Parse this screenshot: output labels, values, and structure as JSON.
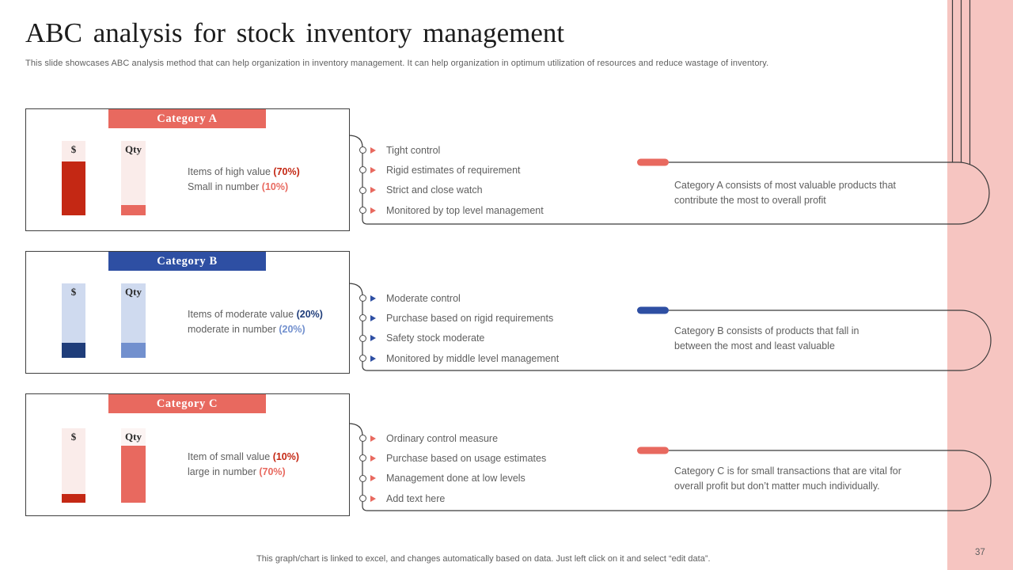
{
  "slide": {
    "title": "ABC analysis for stock inventory management",
    "subtitle": "This slide showcases ABC analysis method that can help organization in inventory management. It can help organization in optimum utilization of resources and reduce wastage of inventory.",
    "footer": "This graph/chart is linked to excel, and changes automatically based on data. Just left click on it and select “edit data”.",
    "page_number": "37"
  },
  "colors": {
    "salmon": "#E8695F",
    "dark_red": "#C42814",
    "light_pink_track": "#FAECEA",
    "navy_header": "#2E4FA3",
    "dark_navy": "#1F3D7A",
    "medium_blue": "#7290CE",
    "light_blue_track": "#CFDAEF",
    "pink_stripe": "#F6C5C1",
    "body_text_gray": "#5f5f5f",
    "outline_dark": "#3B3B3B"
  },
  "chart_data": {
    "type": "bar",
    "note": "Each category shows two vertical bars: $ (value share) and Qty (quantity share)",
    "categories": [
      "Category A",
      "Category B",
      "Category C"
    ],
    "series": [
      {
        "name": "$",
        "values_pct": [
          70,
          20,
          10
        ]
      },
      {
        "name": "Qty",
        "values_pct": [
          10,
          20,
          70
        ]
      }
    ]
  },
  "categories": [
    {
      "header": "Category A",
      "marker_color": "#E8695F",
      "bars": [
        {
          "label": "$",
          "stated_pct": "70%",
          "fill_pct": 72
        },
        {
          "label": "Qty",
          "stated_pct": "10%",
          "fill_pct": 14
        }
      ],
      "desc": [
        {
          "text": "Items of high value ",
          "pct": "(70%)"
        },
        {
          "text": "Small in number ",
          "pct": "(10%)"
        }
      ],
      "bullets": [
        "Tight control",
        "Rigid estimates of requirement",
        "Strict and close watch",
        "Monitored by top level management"
      ],
      "callout_lines": [
        "Category A consists of most valuable products that",
        "contribute the most to overall profit"
      ]
    },
    {
      "header": "Category B",
      "marker_color": "#2E4FA3",
      "bars": [
        {
          "label": "$",
          "stated_pct": "20%",
          "fill_pct": 20
        },
        {
          "label": "Qty",
          "stated_pct": "20%",
          "fill_pct": 20
        }
      ],
      "desc": [
        {
          "text": "Items of moderate value ",
          "pct": "(20%)"
        },
        {
          "text": "moderate in number ",
          "pct": "(20%)"
        }
      ],
      "bullets": [
        "Moderate control",
        "Purchase based on rigid requirements",
        "Safety stock moderate",
        "Monitored by middle level management"
      ],
      "callout_lines": [
        "Category B consists of products that fall in",
        "between the most and least valuable"
      ]
    },
    {
      "header": "Category C",
      "marker_color": "#E8695F",
      "bars": [
        {
          "label": "$",
          "stated_pct": "10%",
          "fill_pct": 12
        },
        {
          "label": "Qty",
          "stated_pct": "70%",
          "fill_pct": 77
        }
      ],
      "desc": [
        {
          "text": "Item of small value ",
          "pct": "(10%)"
        },
        {
          "text": "large in number ",
          "pct": "(70%)"
        }
      ],
      "bullets": [
        "Ordinary control measure",
        "Purchase based on usage estimates",
        "Management done at low levels",
        "Add text here"
      ],
      "callout_lines": [
        "Category C is for small transactions that are vital for",
        "overall profit but don’t matter much individually."
      ]
    }
  ]
}
